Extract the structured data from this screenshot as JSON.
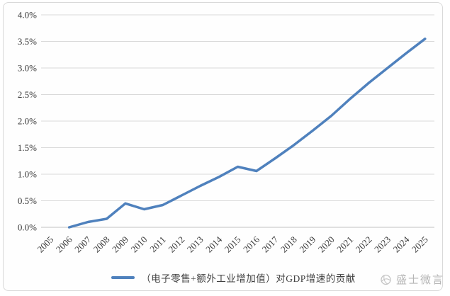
{
  "chart_data": {
    "type": "line",
    "title": "",
    "xlabel": "",
    "ylabel": "",
    "categories": [
      "2005",
      "2006",
      "2007",
      "2008",
      "2009",
      "2010",
      "2011",
      "2012",
      "2013",
      "2014",
      "2015",
      "2016",
      "2017",
      "2018",
      "2019",
      "2020",
      "2021",
      "2022",
      "2023",
      "2024",
      "2025"
    ],
    "series": [
      {
        "name": "（电子零售+额外工业增加值）对GDP增速的贡献",
        "values": [
          null,
          0.0,
          0.1,
          0.16,
          0.45,
          0.34,
          0.42,
          0.6,
          0.78,
          0.95,
          1.14,
          1.06,
          1.3,
          1.55,
          1.82,
          2.1,
          2.42,
          2.72,
          3.0,
          3.28,
          3.55
        ],
        "color": "#4f81bd"
      }
    ],
    "ylim": [
      0.0,
      4.0
    ],
    "y_ticks": [
      "0.0%",
      "0.5%",
      "1.0%",
      "1.5%",
      "2.0%",
      "2.5%",
      "3.0%",
      "3.5%",
      "4.0%"
    ],
    "y_tick_values": [
      0.0,
      0.5,
      1.0,
      1.5,
      2.0,
      2.5,
      3.0,
      3.5,
      4.0
    ],
    "grid": "horizontal",
    "legend_position": "bottom",
    "x_label_rotation_deg": -45,
    "colors": {
      "gridline": "#dadada",
      "axis_line": "#c3c3c3",
      "tick_text": "#3a3a3a",
      "frame_border": "#d9d9d9"
    }
  },
  "legend": {
    "label": "（电子零售+额外工业增加值）对GDP增速的贡献"
  },
  "watermark": {
    "text": "盛士微言"
  }
}
